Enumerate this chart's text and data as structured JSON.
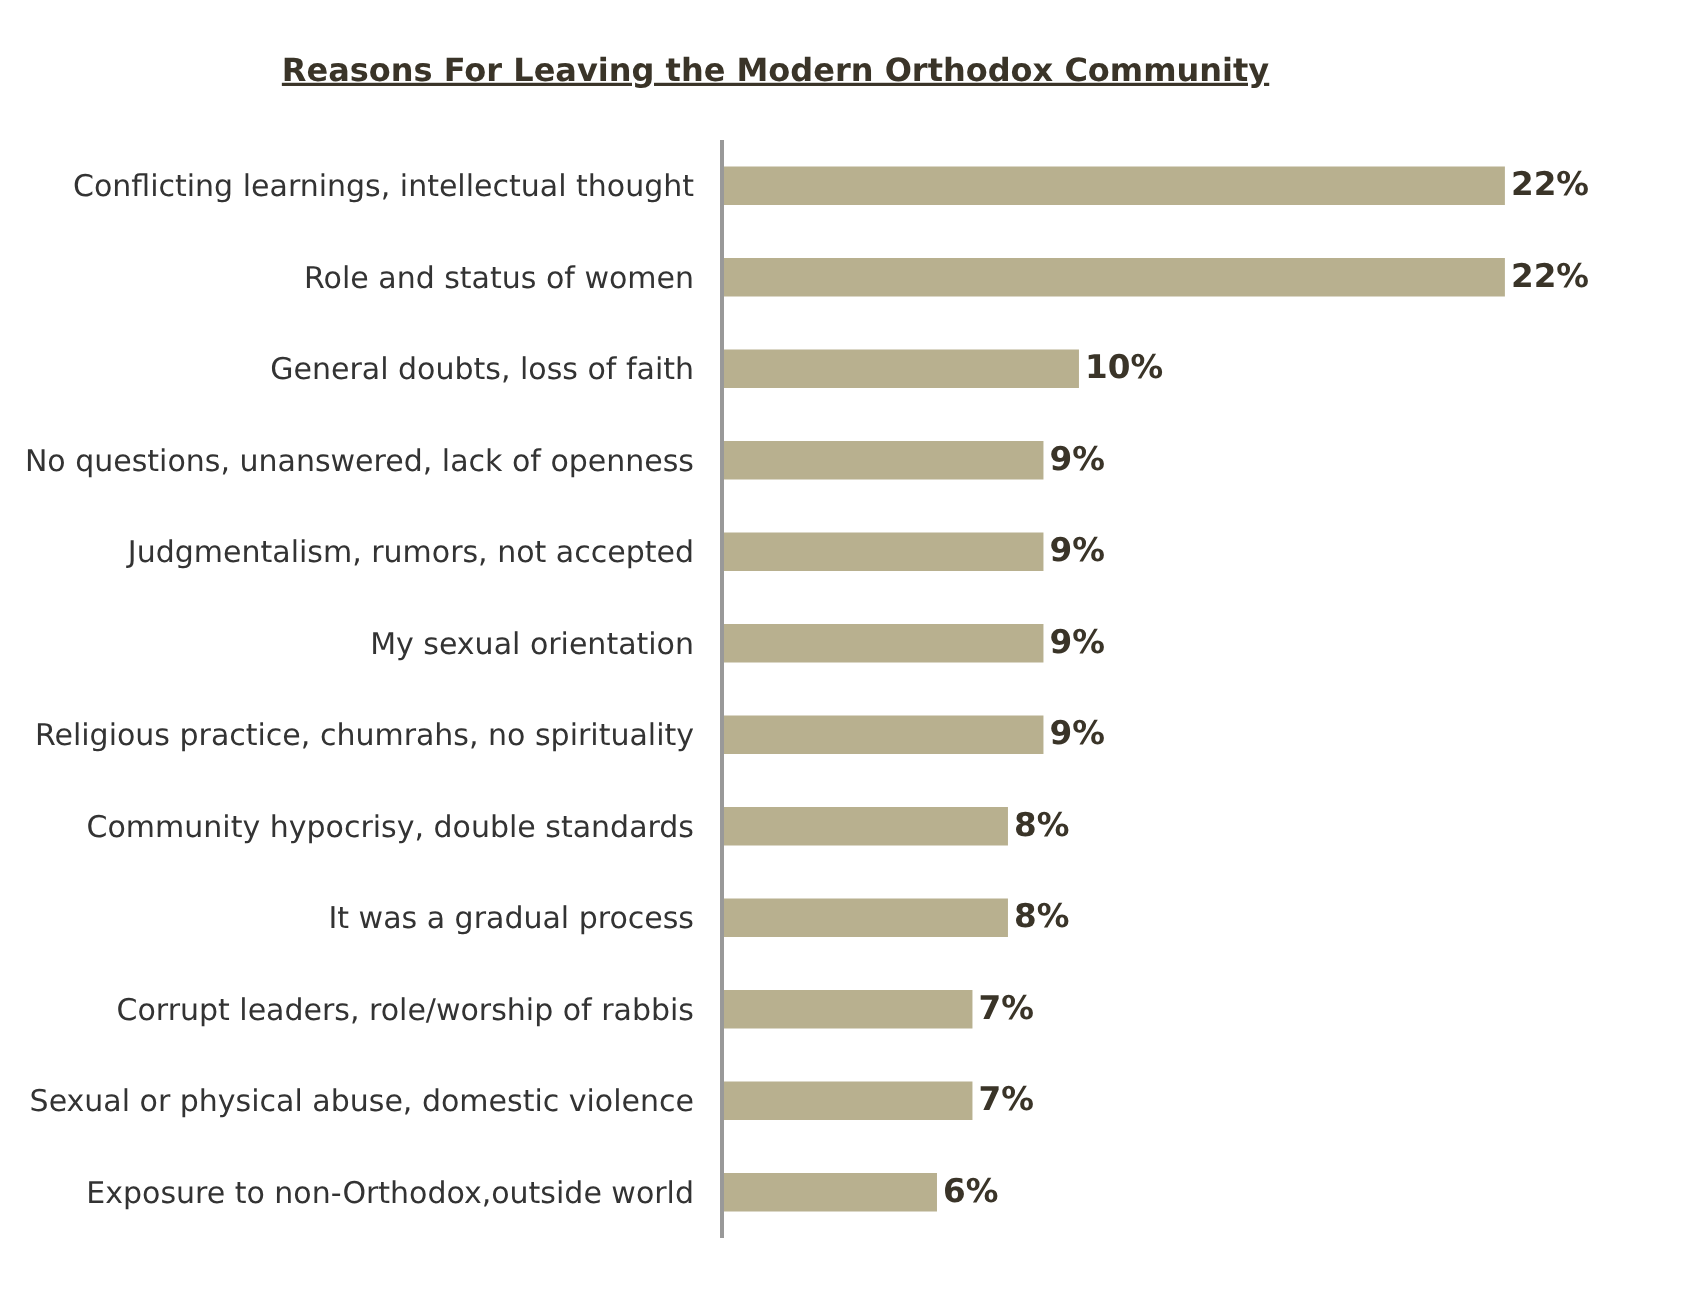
{
  "chart_data": {
    "type": "bar",
    "orientation": "horizontal",
    "title": "Reasons For Leaving the Modern Orthodox Community",
    "categories": [
      "Conflicting learnings, intellectual thought",
      "Role and status of women",
      "General doubts, loss of faith",
      "No questions, unanswered, lack of openness",
      "Judgmentalism, rumors, not accepted",
      "My sexual orientation",
      "Religious practice, chumrahs, no spirituality",
      "Community hypocrisy, double standards",
      "It was a gradual process",
      "Corrupt leaders, role/worship of rabbis",
      "Sexual or physical abuse, domestic violence",
      "Exposure to non-Orthodox,outside world"
    ],
    "values": [
      22,
      22,
      10,
      9,
      9,
      9,
      9,
      8,
      8,
      7,
      7,
      6
    ],
    "value_labels": [
      "22%",
      "22%",
      "10%",
      "9%",
      "9%",
      "9%",
      "9%",
      "8%",
      "8%",
      "7%",
      "7%",
      "6%"
    ],
    "color": "#b8b08f",
    "grid": false,
    "legend": false
  }
}
